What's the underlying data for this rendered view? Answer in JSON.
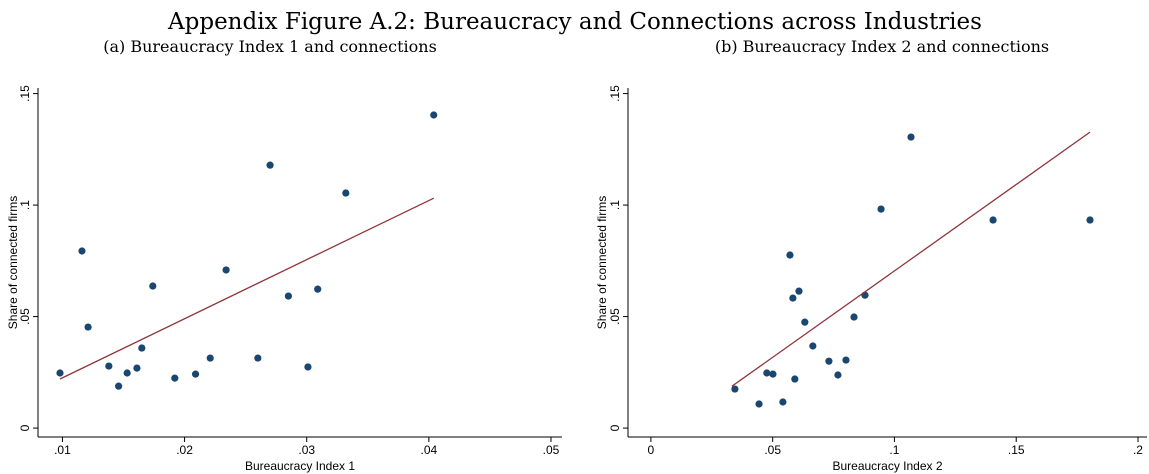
{
  "title": "Appendix Figure A.2: Bureaucracy and Connections across Industries",
  "chart_data": [
    {
      "type": "scatter",
      "title": "(a) Bureaucracy Index 1 and connections",
      "xlabel": "Bureaucracy Index 1",
      "ylabel": "Share of connected firms",
      "xlim": [
        0.008,
        0.0509
      ],
      "ylim": [
        -0.004,
        0.1525
      ],
      "xticks": [
        {
          "value": 0.01,
          "label": ".01"
        },
        {
          "value": 0.02,
          "label": ".02"
        },
        {
          "value": 0.03,
          "label": ".03"
        },
        {
          "value": 0.04,
          "label": ".04"
        },
        {
          "value": 0.05,
          "label": ".05"
        }
      ],
      "yticks": [
        0,
        {
          "value": 0.05,
          "label": ".05"
        },
        {
          "value": 0.1,
          "label": ".1"
        },
        {
          "value": 0.15,
          "label": ".15"
        }
      ],
      "series": [
        {
          "style": "markers",
          "color": "#1a476f",
          "x": [
            0.0098,
            0.0116,
            0.0121,
            0.0138,
            0.0146,
            0.0153,
            0.0161,
            0.0165,
            0.0174,
            0.0192,
            0.0209,
            0.0221,
            0.0234,
            0.026,
            0.027,
            0.0285,
            0.0301,
            0.0309,
            0.0332,
            0.0404
          ],
          "values": [
            0.0247,
            0.0794,
            0.0453,
            0.0278,
            0.0188,
            0.0247,
            0.0269,
            0.0359,
            0.0637,
            0.0224,
            0.0242,
            0.0314,
            0.0709,
            0.0314,
            0.1179,
            0.0592,
            0.0274,
            0.0623,
            0.1054,
            0.1404
          ]
        },
        {
          "style": "line",
          "color": "#90353b",
          "x": [
            0.0098,
            0.0404
          ],
          "values": [
            0.022,
            0.1031
          ]
        }
      ]
    },
    {
      "type": "scatter",
      "title": "(b) Bureaucracy Index 2 and connections",
      "xlabel": "Bureaucracy Index 2",
      "ylabel": "Share of connected firms",
      "xlim": [
        -0.0094,
        0.2037
      ],
      "ylim": [
        -0.004,
        0.1525
      ],
      "xticks": [
        0,
        {
          "value": 0.05,
          "label": ".05"
        },
        {
          "value": 0.1,
          "label": ".1"
        },
        {
          "value": 0.15,
          "label": ".15"
        },
        {
          "value": 0.2,
          "label": ".2"
        }
      ],
      "yticks": [
        0,
        {
          "value": 0.05,
          "label": ".05"
        },
        {
          "value": 0.1,
          "label": ".1"
        },
        {
          "value": 0.15,
          "label": ".15"
        }
      ],
      "series": [
        {
          "style": "markers",
          "color": "#1a476f",
          "x": [
            0.0345,
            0.0444,
            0.0476,
            0.0501,
            0.0542,
            0.0571,
            0.0583,
            0.0591,
            0.0608,
            0.0632,
            0.0665,
            0.0731,
            0.0768,
            0.0801,
            0.0834,
            0.0879,
            0.0945,
            0.1068,
            0.1405,
            0.1803
          ],
          "values": [
            0.0175,
            0.0108,
            0.0247,
            0.0242,
            0.0117,
            0.0776,
            0.0583,
            0.022,
            0.0614,
            0.0475,
            0.0368,
            0.03,
            0.0238,
            0.0305,
            0.0498,
            0.0596,
            0.0982,
            0.1305,
            0.0933,
            0.0933
          ]
        },
        {
          "style": "line",
          "color": "#90353b",
          "x": [
            0.0333,
            0.1803
          ],
          "values": [
            0.0188,
            0.1327
          ]
        }
      ]
    }
  ]
}
